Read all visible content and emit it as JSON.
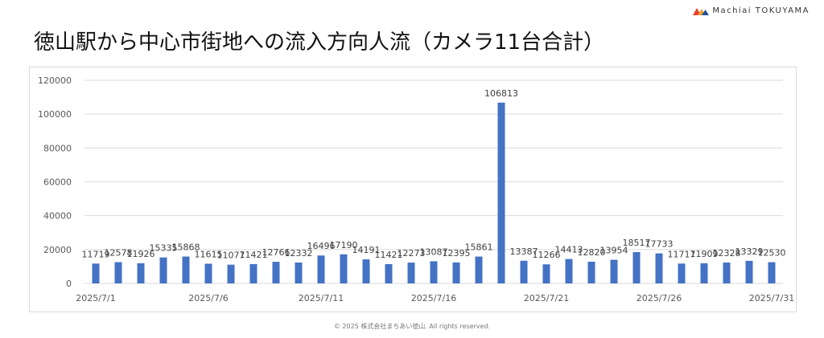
{
  "brand": {
    "name": "Machiai TOKUYAMA",
    "colors": [
      "#e8412c",
      "#f0a030",
      "#1f4e9e"
    ]
  },
  "title": "徳山駅から中心市街地への流入方向人流（カメラ11台合計）",
  "footer": "© 2025 株式会社まちあい徳山. All rights reserved.",
  "chart_data": {
    "type": "bar",
    "title": "",
    "xlabel": "",
    "ylabel": "",
    "ylim": [
      0,
      120000
    ],
    "yticks": [
      0,
      20000,
      40000,
      60000,
      80000,
      100000,
      120000
    ],
    "grid": true,
    "bar_color": "#4472c4",
    "x_tick_labels": [
      "2025/7/1",
      "2025/7/6",
      "2025/7/11",
      "2025/7/16",
      "2025/7/21",
      "2025/7/26",
      "2025/7/31"
    ],
    "categories": [
      "2025/7/1",
      "2025/7/2",
      "2025/7/3",
      "2025/7/4",
      "2025/7/5",
      "2025/7/6",
      "2025/7/7",
      "2025/7/8",
      "2025/7/9",
      "2025/7/10",
      "2025/7/11",
      "2025/7/12",
      "2025/7/13",
      "2025/7/14",
      "2025/7/15",
      "2025/7/16",
      "2025/7/17",
      "2025/7/18",
      "2025/7/19",
      "2025/7/20",
      "2025/7/21",
      "2025/7/22",
      "2025/7/23",
      "2025/7/24",
      "2025/7/25",
      "2025/7/26",
      "2025/7/27",
      "2025/7/28",
      "2025/7/29",
      "2025/7/30",
      "2025/7/31"
    ],
    "values": [
      11719,
      12578,
      11926,
      15335,
      15868,
      11615,
      11077,
      11421,
      12766,
      12332,
      16496,
      17190,
      14191,
      11421,
      12273,
      13087,
      12395,
      15861,
      106813,
      13387,
      11266,
      14413,
      12820,
      13954,
      18517,
      17733,
      11717,
      11909,
      12328,
      13329,
      12530
    ]
  }
}
